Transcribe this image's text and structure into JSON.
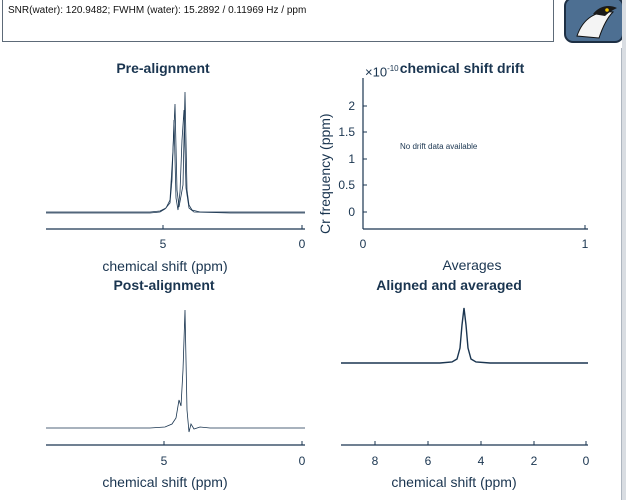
{
  "info": {
    "text": "SNR(water): 120.9482; FWHM (water): 15.2892 / 0.11969 Hz / ppm"
  },
  "logo": {
    "icon": "osprey-bird-icon"
  },
  "plots": {
    "pre": {
      "title": "Pre-alignment",
      "xlabel": "chemical shift (ppm)",
      "ticks": [
        "5",
        "0"
      ]
    },
    "drift": {
      "title": "chemical shift drift",
      "xlabel": "Averages",
      "ylabel": "Cr frequency (ppm)",
      "exponent_base": "×10",
      "exponent_power": "-10",
      "yticks": [
        "2",
        "1.5",
        "1",
        "0.5",
        "0"
      ],
      "xticks": [
        "0",
        "1"
      ],
      "note": "No drift data available"
    },
    "post": {
      "title": "Post-alignment",
      "xlabel": "chemical shift (ppm)",
      "ticks": [
        "5",
        "0"
      ]
    },
    "avg": {
      "title": "Aligned and averaged",
      "xlabel": "chemical shift (ppm)",
      "ticks": [
        "8",
        "6",
        "4",
        "2",
        "0"
      ]
    }
  },
  "colors": {
    "line": "#1a3550",
    "text": "#1a3550"
  }
}
